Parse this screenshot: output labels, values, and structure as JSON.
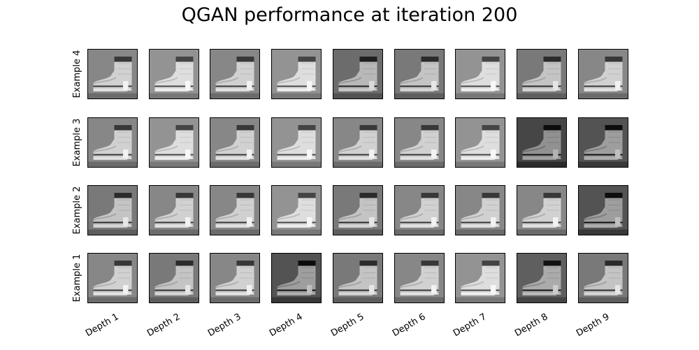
{
  "chart_data": {
    "type": "image_grid",
    "title": "QGAN performance at iteration 200",
    "row_labels": [
      "Example 4",
      "Example 3",
      "Example 2",
      "Example 1"
    ],
    "col_labels": [
      "Depth 1",
      "Depth 2",
      "Depth 3",
      "Depth 4",
      "Depth 5",
      "Depth 6",
      "Depth 7",
      "Depth 8",
      "Depth 9"
    ],
    "image_subject": "boot-icon",
    "colormap": "grayscale",
    "cell_brightness": [
      [
        0.5,
        0.55,
        0.5,
        0.55,
        0.4,
        0.45,
        0.55,
        0.45,
        0.5
      ],
      [
        0.5,
        0.55,
        0.5,
        0.55,
        0.5,
        0.5,
        0.55,
        0.25,
        0.3
      ],
      [
        0.45,
        0.5,
        0.5,
        0.55,
        0.45,
        0.5,
        0.5,
        0.5,
        0.3
      ],
      [
        0.5,
        0.45,
        0.5,
        0.3,
        0.45,
        0.5,
        0.55,
        0.35,
        0.45
      ]
    ]
  }
}
